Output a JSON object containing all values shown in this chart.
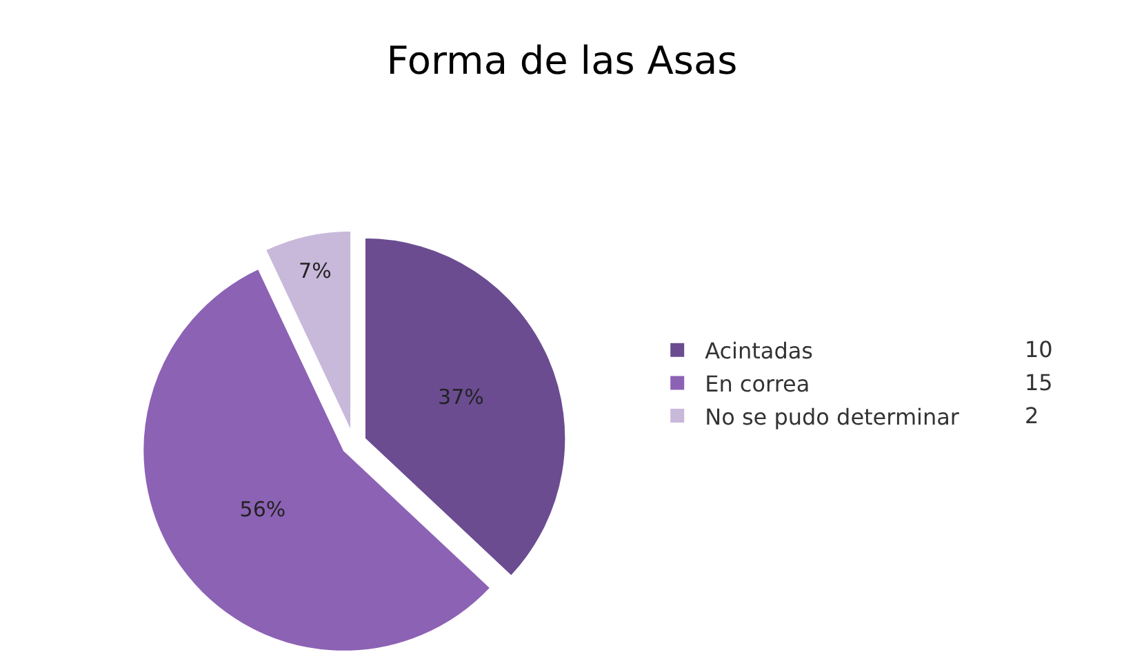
{
  "chart_data": {
    "type": "pie",
    "title": "Forma de las Asas",
    "categories": [
      "Acintadas",
      "En correa",
      "No se pudo determinar"
    ],
    "values": [
      37,
      56,
      7
    ],
    "value_labels": [
      "37%",
      "56%",
      "7%"
    ],
    "colors": [
      "#6b4c91",
      "#8c62b5",
      "#c8b8da"
    ],
    "annotations": [
      "10",
      "15",
      "2"
    ],
    "legend": "right"
  }
}
